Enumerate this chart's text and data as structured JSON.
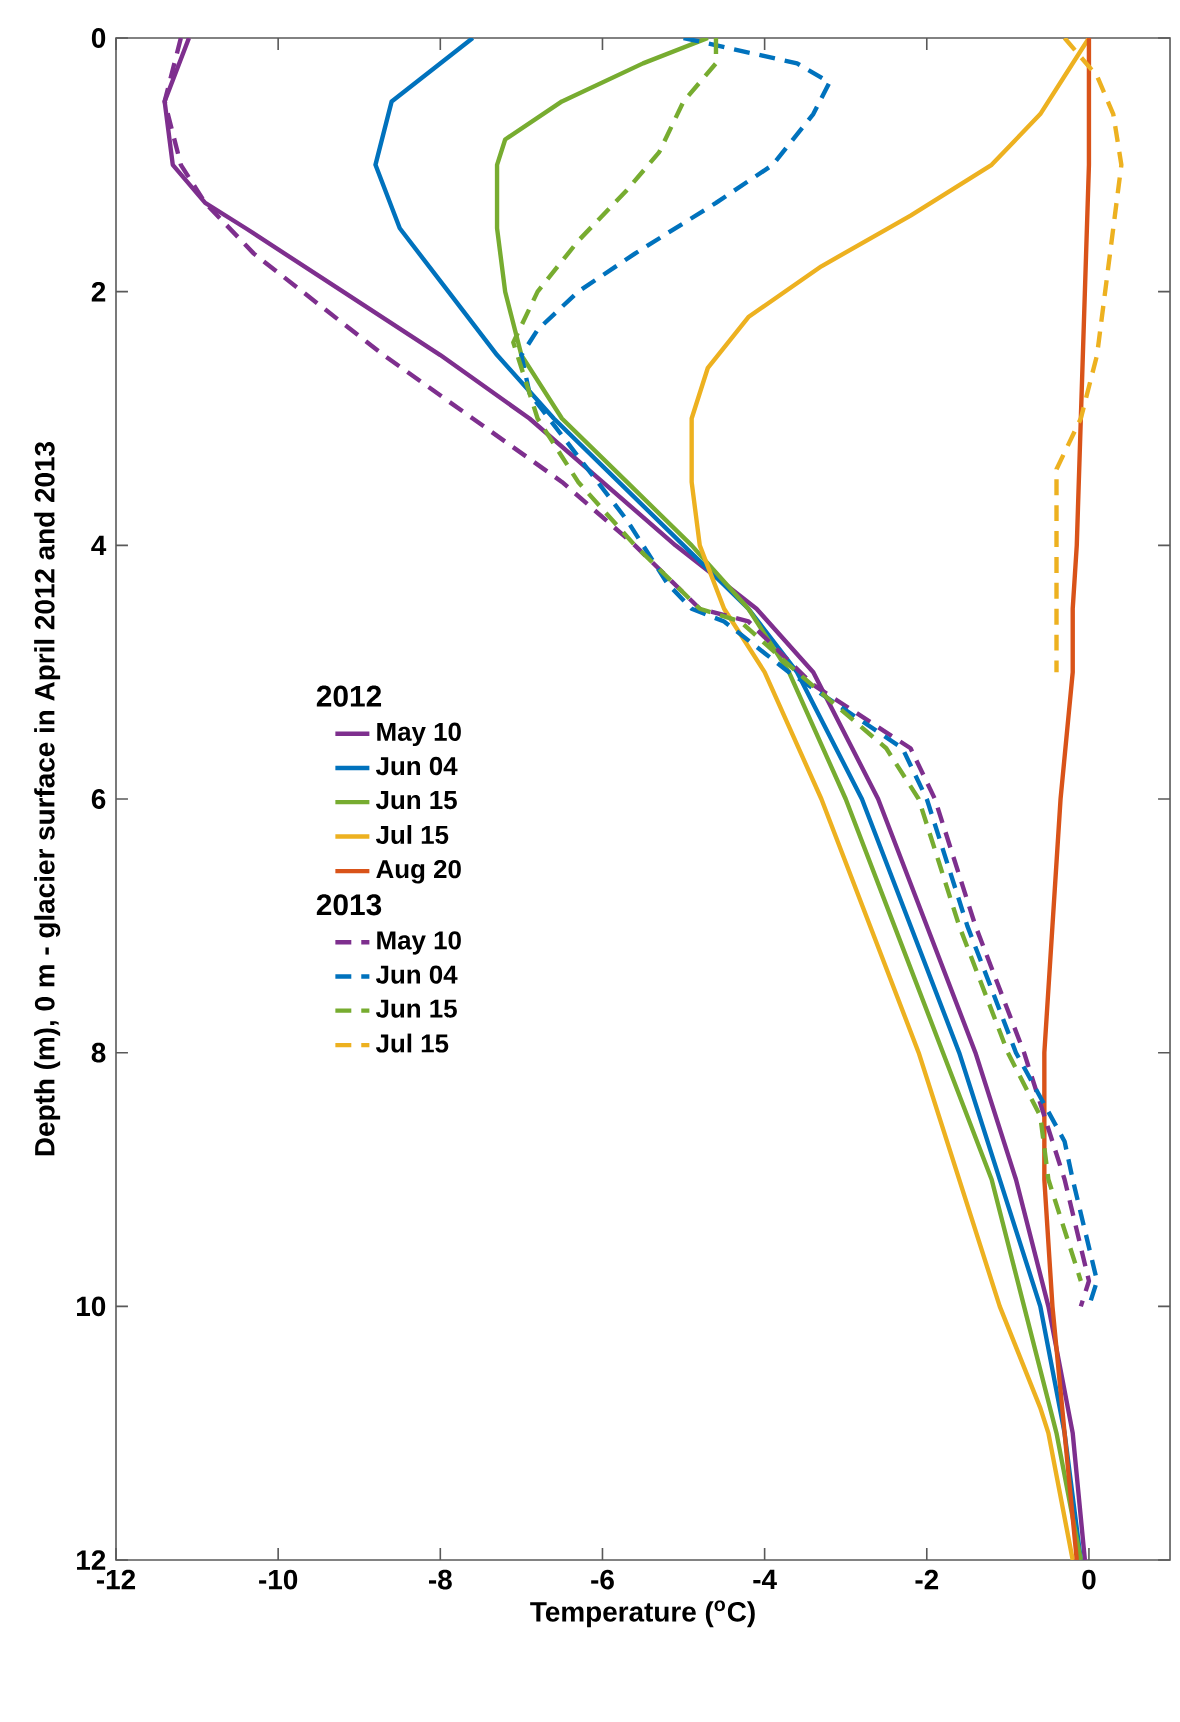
{
  "chart_data": {
    "type": "line",
    "xlabel": "Temperature ($^{o}$C)",
    "ylabel": "Depth (m), 0 m - glacier surface in April 2012 and 2013",
    "legend_title": "2012",
    "annotations": [
      "2013"
    ],
    "legend": "left",
    "xlim": [
      -12,
      1
    ],
    "ylim": [
      12,
      0
    ],
    "xticks": [
      -12,
      -10,
      -8,
      -6,
      -4,
      -2,
      0
    ],
    "yticks": [
      0,
      2,
      4,
      6,
      8,
      10,
      12
    ],
    "series": [
      {
        "name": "May 10",
        "color": "#7e2f8e",
        "line_style": "solid",
        "x": [
          -11.1,
          -11.4,
          -11.3,
          -10.9,
          -10.4,
          -9.2,
          -8.0,
          -6.9,
          -6.0,
          -5.1,
          -4.1,
          -3.4,
          -2.6,
          -2.0,
          -1.4,
          -0.9,
          -0.5,
          -0.2,
          -0.05
        ],
        "values": [
          0,
          0.5,
          1,
          1.3,
          1.5,
          2,
          2.5,
          3,
          3.5,
          4,
          4.5,
          5,
          6,
          7,
          8,
          9,
          10,
          11,
          12
        ]
      },
      {
        "name": "Jun 04",
        "color": "#0072bd",
        "line_style": "solid",
        "x": [
          -7.6,
          -8.6,
          -8.8,
          -8.5,
          -7.9,
          -7.3,
          -6.6,
          -5.8,
          -5.0,
          -4.2,
          -3.6,
          -2.8,
          -2.2,
          -1.6,
          -1.1,
          -0.6,
          -0.3,
          -0.1
        ],
        "values": [
          0,
          0.5,
          1,
          1.5,
          2,
          2.5,
          3,
          3.5,
          4,
          4.5,
          5,
          6,
          7,
          8,
          9,
          10,
          11,
          12
        ]
      },
      {
        "name": "Jun 15",
        "color": "#77ac30",
        "line_style": "solid",
        "x": [
          -4.7,
          -5.5,
          -6.5,
          -7.2,
          -7.3,
          -7.3,
          -7.2,
          -7.0,
          -6.5,
          -5.7,
          -4.9,
          -4.2,
          -3.7,
          -3.0,
          -2.4,
          -1.8,
          -1.2,
          -0.8,
          -0.4,
          -0.1
        ],
        "values": [
          0,
          0.2,
          0.5,
          0.8,
          1,
          1.5,
          2,
          2.5,
          3,
          3.5,
          4,
          4.5,
          5,
          6,
          7,
          8,
          9,
          10,
          11,
          12
        ]
      },
      {
        "name": "Jul 15",
        "color": "#edb120",
        "line_style": "solid",
        "x": [
          0.0,
          -0.3,
          -0.6,
          -1.2,
          -2.2,
          -3.3,
          -4.2,
          -4.7,
          -4.9,
          -4.9,
          -4.8,
          -4.5,
          -4.0,
          -3.3,
          -2.7,
          -2.1,
          -1.6,
          -1.1,
          -0.6,
          -0.5,
          -0.2
        ],
        "values": [
          0,
          0.3,
          0.6,
          1,
          1.4,
          1.8,
          2.2,
          2.6,
          3,
          3.5,
          4,
          4.5,
          5,
          6,
          7,
          8,
          9,
          10,
          10.8,
          11,
          12
        ]
      },
      {
        "name": "Aug 20",
        "color": "#d95319",
        "line_style": "solid",
        "x": [
          0.0,
          0.0,
          -0.05,
          -0.1,
          -0.15,
          -0.2,
          -0.2,
          -0.35,
          -0.45,
          -0.55,
          -0.55,
          -0.45,
          -0.3,
          -0.15
        ],
        "values": [
          0,
          1,
          2,
          3,
          4,
          4.5,
          5,
          6,
          7,
          8,
          9,
          10,
          11,
          12
        ]
      },
      {
        "name": "May 10",
        "color": "#7e2f8e",
        "line_style": "dashed",
        "x": [
          -11.2,
          -11.4,
          -11.2,
          -10.9,
          -10.3,
          -9.7,
          -8.7,
          -7.6,
          -6.5,
          -5.6,
          -4.8,
          -4.2,
          -3.4,
          -2.2,
          -1.9,
          -1.4,
          -0.8,
          -0.6,
          -0.3,
          0.0,
          -0.1
        ],
        "values": [
          0,
          0.5,
          1,
          1.3,
          1.7,
          2,
          2.5,
          3,
          3.5,
          4,
          4.5,
          4.6,
          5.1,
          5.6,
          6,
          7,
          8,
          8.4,
          9,
          9.8,
          10
        ]
      },
      {
        "name": "Jun 04",
        "color": "#0072bd",
        "line_style": "dashed",
        "x": [
          -5.0,
          -3.6,
          -3.2,
          -3.4,
          -3.9,
          -4.6,
          -5.6,
          -6.3,
          -6.8,
          -7.0,
          -6.9,
          -6.3,
          -5.7,
          -5.2,
          -4.9,
          -4.5,
          -3.7,
          -2.3,
          -2.0,
          -1.5,
          -0.9,
          -0.3,
          -0.2,
          0.1,
          0.0
        ],
        "values": [
          0,
          0.2,
          0.35,
          0.6,
          1,
          1.3,
          1.7,
          2,
          2.3,
          2.5,
          2.8,
          3.3,
          3.8,
          4.3,
          4.5,
          4.6,
          5,
          5.6,
          6,
          7,
          8,
          8.7,
          9,
          9.8,
          10
        ]
      },
      {
        "name": "Jun 15",
        "color": "#77ac30",
        "line_style": "dashed",
        "x": [
          -4.6,
          -4.6,
          -5.0,
          -5.3,
          -5.7,
          -6.3,
          -6.8,
          -7.1,
          -6.8,
          -6.3,
          -5.6,
          -4.8,
          -4.3,
          -3.6,
          -2.5,
          -2.1,
          -1.6,
          -1.0,
          -0.6,
          -0.5,
          -0.1
        ],
        "values": [
          0,
          0.2,
          0.5,
          0.9,
          1.2,
          1.6,
          2,
          2.4,
          3,
          3.5,
          4,
          4.5,
          4.6,
          5,
          5.6,
          6,
          7,
          8,
          8.5,
          9,
          9.8
        ]
      },
      {
        "name": "Jul 15",
        "color": "#edb120",
        "line_style": "dashed",
        "x": [
          -0.3,
          0.1,
          0.3,
          0.4,
          0.3,
          0.2,
          0.1,
          -0.1,
          -0.4,
          -0.4,
          -0.4,
          -0.4
        ],
        "values": [
          0,
          0.3,
          0.6,
          1,
          1.5,
          2,
          2.5,
          3,
          3.4,
          3.6,
          4,
          5
        ]
      }
    ]
  }
}
